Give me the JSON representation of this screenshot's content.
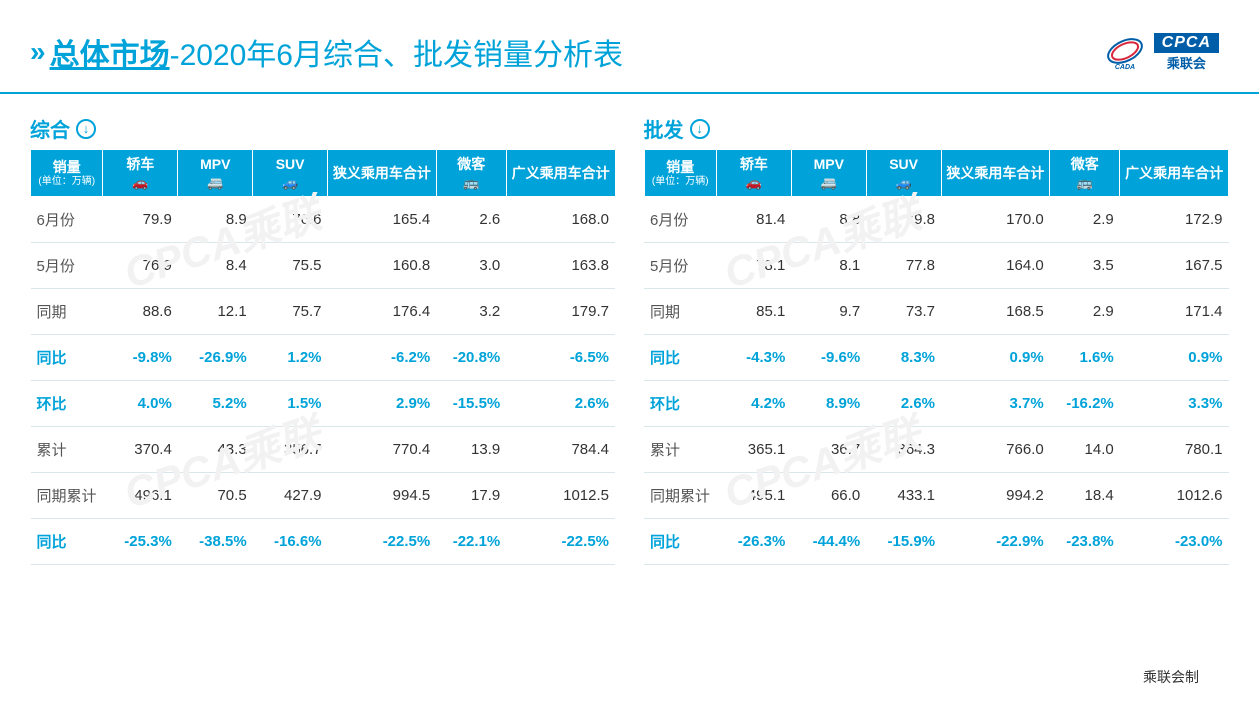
{
  "colors": {
    "primary": "#00a3d9",
    "navy": "#005ea8",
    "text": "#333333",
    "rowline": "#d9e6ec",
    "bg": "#ffffff",
    "watermark": "#f2f2f2"
  },
  "header": {
    "title_main": "总体市场",
    "title_sub": "-2020年6月综合、批发销量分析表",
    "logo_cada": "CADA",
    "logo_cpca_top": "CPCA",
    "logo_cpca_bot": "乘联会"
  },
  "columns": [
    {
      "key": "label",
      "head": "销量",
      "unit": "(单位：万辆)",
      "icon": ""
    },
    {
      "key": "sedan",
      "head": "轿车",
      "icon": "🚗"
    },
    {
      "key": "mpv",
      "head": "MPV",
      "icon": "🚐"
    },
    {
      "key": "suv",
      "head": "SUV",
      "icon": "🚙"
    },
    {
      "key": "narrow",
      "head": "狭义乘用车合计",
      "icon": ""
    },
    {
      "key": "micro",
      "head": "微客",
      "icon": "🚌"
    },
    {
      "key": "broad",
      "head": "广义乘用车合计",
      "icon": ""
    }
  ],
  "tables": [
    {
      "title": "综合",
      "rows": [
        {
          "hl": false,
          "cells": [
            "6月份",
            "79.9",
            "8.9",
            "76.6",
            "165.4",
            "2.6",
            "168.0"
          ]
        },
        {
          "hl": false,
          "cells": [
            "5月份",
            "76.9",
            "8.4",
            "75.5",
            "160.8",
            "3.0",
            "163.8"
          ]
        },
        {
          "hl": false,
          "cells": [
            "同期",
            "88.6",
            "12.1",
            "75.7",
            "176.4",
            "3.2",
            "179.7"
          ]
        },
        {
          "hl": true,
          "cells": [
            "同比",
            "-9.8%",
            "-26.9%",
            "1.2%",
            "-6.2%",
            "-20.8%",
            "-6.5%"
          ]
        },
        {
          "hl": true,
          "cells": [
            "环比",
            "4.0%",
            "5.2%",
            "1.5%",
            "2.9%",
            "-15.5%",
            "2.6%"
          ]
        },
        {
          "hl": false,
          "cells": [
            "累计",
            "370.4",
            "43.3",
            "356.7",
            "770.4",
            "13.9",
            "784.4"
          ]
        },
        {
          "hl": false,
          "cells": [
            "同期累计",
            "496.1",
            "70.5",
            "427.9",
            "994.5",
            "17.9",
            "1012.5"
          ]
        },
        {
          "hl": true,
          "cells": [
            "同比",
            "-25.3%",
            "-38.5%",
            "-16.6%",
            "-22.5%",
            "-22.1%",
            "-22.5%"
          ]
        }
      ]
    },
    {
      "title": "批发",
      "rows": [
        {
          "hl": false,
          "cells": [
            "6月份",
            "81.4",
            "8.8",
            "79.8",
            "170.0",
            "2.9",
            "172.9"
          ]
        },
        {
          "hl": false,
          "cells": [
            "5月份",
            "78.1",
            "8.1",
            "77.8",
            "164.0",
            "3.5",
            "167.5"
          ]
        },
        {
          "hl": false,
          "cells": [
            "同期",
            "85.1",
            "9.7",
            "73.7",
            "168.5",
            "2.9",
            "171.4"
          ]
        },
        {
          "hl": true,
          "cells": [
            "同比",
            "-4.3%",
            "-9.6%",
            "8.3%",
            "0.9%",
            "1.6%",
            "0.9%"
          ]
        },
        {
          "hl": true,
          "cells": [
            "环比",
            "4.2%",
            "8.9%",
            "2.6%",
            "3.7%",
            "-16.2%",
            "3.3%"
          ]
        },
        {
          "hl": false,
          "cells": [
            "累计",
            "365.1",
            "36.7",
            "364.3",
            "766.0",
            "14.0",
            "780.1"
          ]
        },
        {
          "hl": false,
          "cells": [
            "同期累计",
            "495.1",
            "66.0",
            "433.1",
            "994.2",
            "18.4",
            "1012.6"
          ]
        },
        {
          "hl": true,
          "cells": [
            "同比",
            "-26.3%",
            "-44.4%",
            "-15.9%",
            "-22.9%",
            "-23.8%",
            "-23.0%"
          ]
        }
      ]
    }
  ],
  "watermark_text": "CPCA乘联",
  "footer": "乘联会制"
}
